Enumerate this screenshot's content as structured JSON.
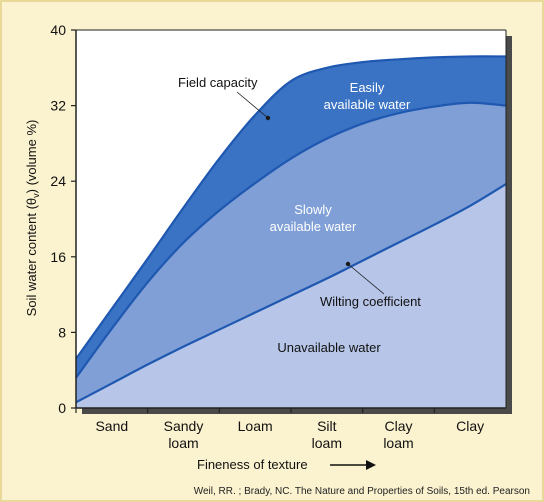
{
  "chart_data": {
    "type": "area",
    "xlabel": "Fineness of texture",
    "ylabel_prefix": "Soil water content (",
    "ylabel_theta": "θ",
    "ylabel_sub": "v",
    "ylabel_suffix": ") (volume %)",
    "categories": [
      "Sand",
      "Sandy loam",
      "Loam",
      "Silt loam",
      "Clay loam",
      "Clay"
    ],
    "category_lines": [
      [
        "Sand"
      ],
      [
        "Sandy",
        "loam"
      ],
      [
        "Loam"
      ],
      [
        "Silt",
        "loam"
      ],
      [
        "Clay",
        "loam"
      ],
      [
        "Clay"
      ]
    ],
    "ylim": [
      0,
      40
    ],
    "yticks": [
      0,
      8,
      16,
      24,
      32,
      40
    ],
    "x_range": [
      0,
      6
    ],
    "curves": {
      "field_capacity": {
        "x": [
          0,
          0.5,
          1,
          1.5,
          2,
          2.5,
          3,
          3.5,
          4,
          4.5,
          5,
          5.5,
          6
        ],
        "y": [
          5.2,
          10.5,
          15.8,
          21.2,
          26.4,
          31,
          34.6,
          36,
          36.6,
          36.9,
          37.1,
          37.2,
          37.2
        ]
      },
      "intermediate": {
        "x": [
          0,
          0.5,
          1,
          1.5,
          2,
          2.5,
          3,
          3.5,
          4,
          4.5,
          5,
          5.5,
          6
        ],
        "y": [
          3.2,
          8.4,
          13.3,
          17.5,
          20.9,
          23.8,
          26.4,
          28.5,
          30.1,
          31.2,
          31.9,
          32.3,
          32
        ]
      },
      "wilting_coefficient": {
        "x": [
          0,
          0.5,
          1,
          1.5,
          2,
          2.5,
          3,
          3.5,
          4,
          4.5,
          5,
          5.5,
          6
        ],
        "y": [
          0.6,
          2.6,
          4.6,
          6.5,
          8.3,
          10.1,
          11.9,
          13.7,
          15.6,
          17.5,
          19.4,
          21.4,
          23.7
        ]
      }
    },
    "annotations": {
      "field_capacity": "Field capacity",
      "easily_line1": "Easily",
      "easily_line2": "available water",
      "slowly_line1": "Slowly",
      "slowly_line2": "available water",
      "wilting": "Wilting coefficient",
      "unavailable": "Unavailable water"
    },
    "colors": {
      "background": "#fbf2cf",
      "plot_bg": "#ffffff",
      "easily": "#3a72c4",
      "easily_band_dark": "#2e64b8",
      "slowly": "#7f9fd6",
      "unavailable": "#b7c6e8",
      "curve": "#1f58b0",
      "axis": "#222222",
      "shadow": "#4a4a4a"
    },
    "credit": "Weil, RR. ; Brady, NC. The Nature and Properties of Soils, 15th ed. Pearson"
  }
}
